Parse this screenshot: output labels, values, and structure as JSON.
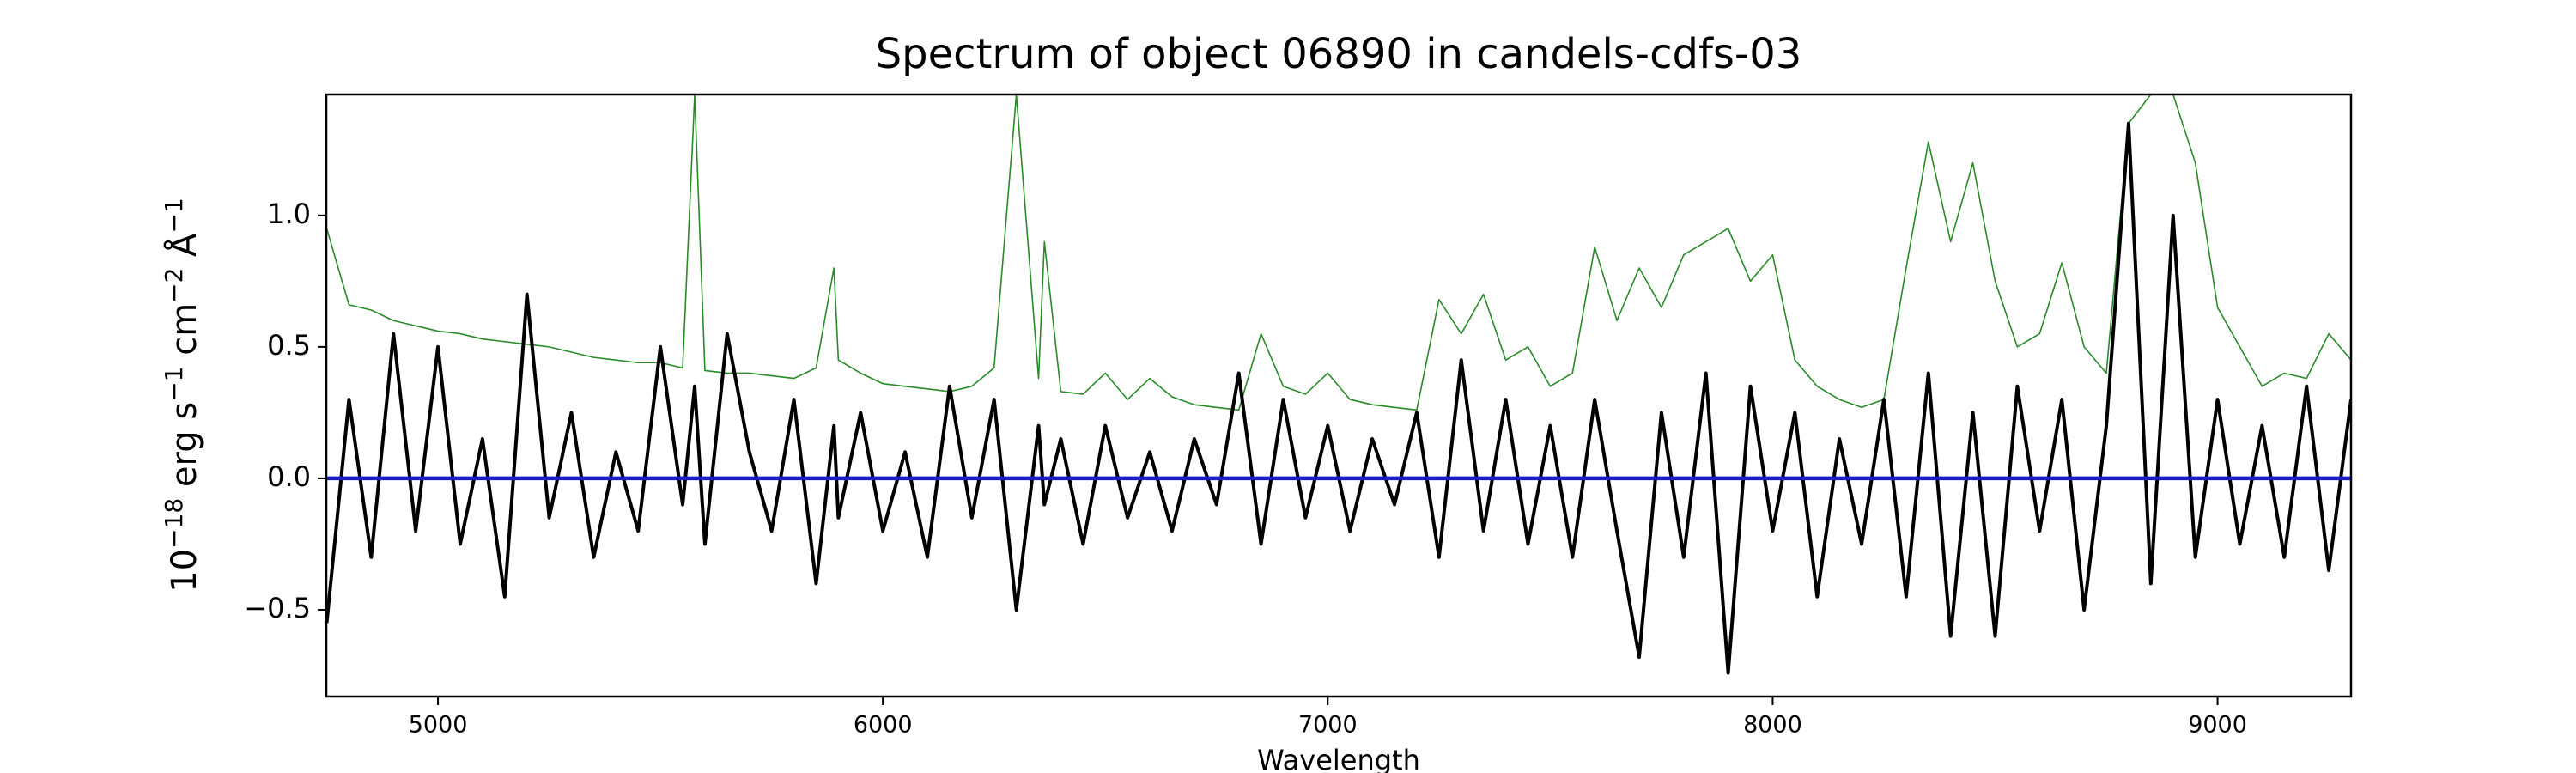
{
  "chart_data": {
    "type": "line",
    "title": "Spectrum of object 06890 in candels-cdfs-03",
    "xlabel": "Wavelength",
    "ylabel": [
      "10",
      "−18",
      " erg s",
      "−1",
      " cm",
      "−2",
      " Å",
      "−1"
    ],
    "xlim": [
      4749,
      9300
    ],
    "ylim": [
      -0.83,
      1.46
    ],
    "xticks": [
      5000,
      6000,
      7000,
      8000,
      9000
    ],
    "yticks": [
      {
        "value": -0.5,
        "label": "−0.5"
      },
      {
        "value": 0,
        "label": "0.0"
      },
      0.5,
      {
        "value": 1,
        "label": "1.0"
      }
    ],
    "grid": false,
    "x": [
      4750,
      4800,
      4850,
      4900,
      4950,
      5000,
      5050,
      5100,
      5150,
      5200,
      5250,
      5300,
      5350,
      5400,
      5450,
      5500,
      5550,
      5577,
      5600,
      5650,
      5700,
      5750,
      5800,
      5850,
      5890,
      5900,
      5950,
      6000,
      6050,
      6100,
      6150,
      6200,
      6250,
      6300,
      6350,
      6363,
      6400,
      6450,
      6500,
      6550,
      6600,
      6650,
      6700,
      6750,
      6800,
      6850,
      6900,
      6950,
      7000,
      7050,
      7100,
      7150,
      7200,
      7250,
      7300,
      7350,
      7400,
      7450,
      7500,
      7550,
      7600,
      7650,
      7700,
      7750,
      7800,
      7850,
      7900,
      7950,
      8000,
      8050,
      8100,
      8150,
      8200,
      8250,
      8300,
      8350,
      8400,
      8450,
      8500,
      8550,
      8600,
      8650,
      8700,
      8750,
      8800,
      8850,
      8900,
      8950,
      9000,
      9050,
      9100,
      9150,
      9200,
      9250,
      9300
    ],
    "series": [
      {
        "color": "#2a8a2a",
        "width": 1.6,
        "values": [
          0.95,
          0.66,
          0.64,
          0.6,
          0.58,
          0.56,
          0.55,
          0.53,
          0.52,
          0.51,
          0.5,
          0.48,
          0.46,
          0.45,
          0.44,
          0.44,
          0.42,
          1.46,
          0.41,
          0.4,
          0.4,
          0.39,
          0.38,
          0.42,
          0.8,
          0.45,
          0.4,
          0.36,
          0.35,
          0.34,
          0.33,
          0.35,
          0.42,
          1.46,
          0.38,
          0.9,
          0.33,
          0.32,
          0.4,
          0.3,
          0.38,
          0.31,
          0.28,
          0.27,
          0.26,
          0.55,
          0.35,
          0.32,
          0.4,
          0.3,
          0.28,
          0.27,
          0.26,
          0.68,
          0.55,
          0.7,
          0.45,
          0.5,
          0.35,
          0.4,
          0.88,
          0.6,
          0.8,
          0.65,
          0.85,
          0.9,
          0.95,
          0.75,
          0.85,
          0.45,
          0.35,
          0.3,
          0.27,
          0.3,
          0.8,
          1.28,
          0.9,
          1.2,
          0.75,
          0.5,
          0.55,
          0.82,
          0.5,
          0.4,
          1.35,
          1.46,
          1.46,
          1.2,
          0.65,
          0.5,
          0.35,
          0.4,
          0.38,
          0.55,
          0.45
        ]
      },
      {
        "color": "#000000",
        "width": 4,
        "values": [
          -0.55,
          0.3,
          -0.3,
          0.55,
          -0.2,
          0.5,
          -0.25,
          0.15,
          -0.45,
          0.7,
          -0.15,
          0.25,
          -0.3,
          0.1,
          -0.2,
          0.5,
          -0.1,
          0.35,
          -0.25,
          0.55,
          0.1,
          -0.2,
          0.3,
          -0.4,
          0.2,
          -0.15,
          0.25,
          -0.2,
          0.1,
          -0.3,
          0.35,
          -0.15,
          0.3,
          -0.5,
          0.2,
          -0.1,
          0.15,
          -0.25,
          0.2,
          -0.15,
          0.1,
          -0.2,
          0.15,
          -0.1,
          0.4,
          -0.25,
          0.3,
          -0.15,
          0.2,
          -0.2,
          0.15,
          -0.1,
          0.25,
          -0.3,
          0.45,
          -0.2,
          0.3,
          -0.25,
          0.2,
          -0.3,
          0.3,
          -0.2,
          -0.68,
          0.25,
          -0.3,
          0.4,
          -0.74,
          0.35,
          -0.2,
          0.25,
          -0.45,
          0.15,
          -0.25,
          0.3,
          -0.45,
          0.4,
          -0.6,
          0.25,
          -0.6,
          0.35,
          -0.2,
          0.3,
          -0.5,
          0.2,
          1.35,
          -0.4,
          1.0,
          -0.3,
          0.3,
          -0.25,
          0.2,
          -0.3,
          0.35,
          -0.35,
          0.3
        ]
      },
      {
        "color": "#1c1cc8",
        "width": 4.5,
        "x": [
          4750,
          9300
        ],
        "values": [
          0,
          0
        ]
      }
    ]
  }
}
